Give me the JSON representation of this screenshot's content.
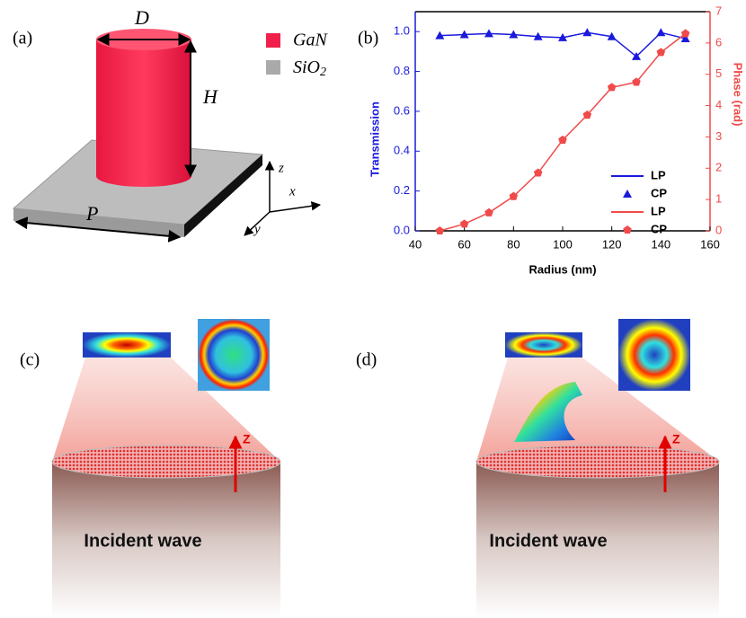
{
  "figure": {
    "panel_labels": [
      "(a)",
      "(b)",
      "(c)",
      "(d)"
    ],
    "panel_a": {
      "D": "D",
      "H": "H",
      "P": "P",
      "x": "x",
      "y": "y",
      "z": "z",
      "legend": [
        {
          "name": "GaN",
          "color": "#f0204a"
        },
        {
          "name": "SiO",
          "sub": "2",
          "color": "#aaaaaa"
        }
      ]
    },
    "panel_c": {
      "caption": "Incident wave",
      "axis": "Z"
    },
    "panel_d": {
      "caption": "Incident wave",
      "axis": "Z"
    }
  },
  "chart_data": {
    "type": "line",
    "x_label": "Radius (nm)",
    "y_label": "Transmission",
    "y2_label": "Phase (rad)",
    "y_color": "#1a1adc",
    "y2_color": "#f04a4a",
    "x": [
      50,
      60,
      70,
      80,
      90,
      100,
      110,
      120,
      130,
      140,
      150
    ],
    "xlim": [
      40,
      160
    ],
    "xticks": [
      40,
      60,
      80,
      100,
      120,
      140,
      160
    ],
    "ylim": [
      0,
      1.1
    ],
    "yticks": [
      {
        "value": 0,
        "label": "0.0"
      },
      {
        "value": 0.2,
        "label": "0.2"
      },
      {
        "value": 0.4,
        "label": "0.4"
      },
      {
        "value": 0.6,
        "label": "0.6"
      },
      {
        "value": 0.8,
        "label": "0.8"
      },
      {
        "value": 1,
        "label": "1.0"
      }
    ],
    "y2lim": [
      0,
      7
    ],
    "y2ticks": [
      0,
      1,
      2,
      3,
      4,
      5,
      6,
      7
    ],
    "series": [
      {
        "name": "LP",
        "color": "#1a1adc",
        "style": "line",
        "values": [
          0.98,
          0.985,
          0.99,
          0.985,
          0.975,
          0.97,
          0.995,
          0.975,
          0.875,
          0.995,
          0.965
        ]
      },
      {
        "name": "CP",
        "color": "#1a1adc",
        "style": "triangle",
        "values": [
          0.98,
          0.985,
          0.99,
          0.985,
          0.975,
          0.97,
          0.995,
          0.975,
          0.875,
          0.995,
          0.965
        ]
      },
      {
        "name": "LP",
        "color": "#f04a4a",
        "style": "line",
        "axis": "y2",
        "values": [
          0,
          0.22,
          0.58,
          1.1,
          1.85,
          2.9,
          3.7,
          4.58,
          4.75,
          5.7,
          6.3
        ]
      },
      {
        "name": "CP",
        "color": "#f04a4a",
        "style": "pentagon",
        "axis": "y2",
        "values": [
          0,
          0.22,
          0.58,
          1.1,
          1.85,
          2.9,
          3.7,
          4.58,
          4.75,
          5.7,
          6.3
        ]
      }
    ]
  }
}
